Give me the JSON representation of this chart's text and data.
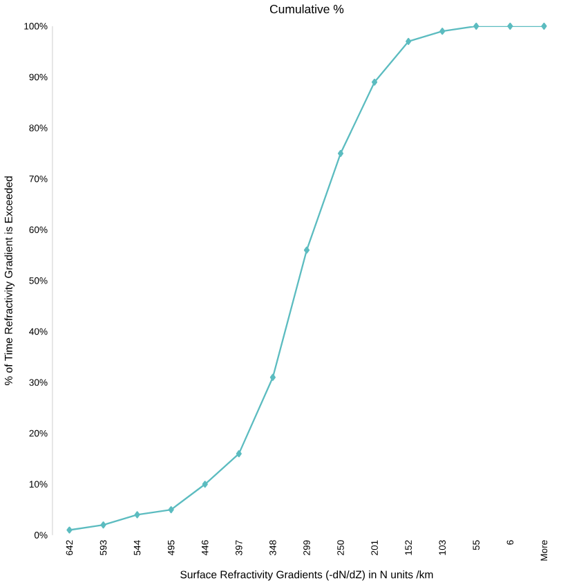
{
  "chart_data": {
    "type": "line",
    "title": "Cumulative %",
    "xlabel": "Surface Refractivity Gradients (-dN/dZ) in N units /km",
    "ylabel": "% of Time Refractivity Gradient is Exceeded",
    "categories": [
      "642",
      "593",
      "544",
      "495",
      "446",
      "397",
      "348",
      "299",
      "250",
      "201",
      "152",
      "103",
      "55",
      "6",
      "More"
    ],
    "series": [
      {
        "color": "#5cbcc0",
        "values": [
          1,
          2,
          4,
          5,
          10,
          16,
          31,
          56,
          75,
          89,
          97,
          99,
          100,
          100,
          100
        ]
      }
    ],
    "ylim": [
      0,
      100
    ],
    "yticks": [
      {
        "value": 0,
        "label": "0%"
      },
      {
        "value": 10,
        "label": "10%"
      },
      {
        "value": 20,
        "label": "20%"
      },
      {
        "value": 30,
        "label": "30%"
      },
      {
        "value": 40,
        "label": "40%"
      },
      {
        "value": 50,
        "label": "50%"
      },
      {
        "value": 60,
        "label": "60%"
      },
      {
        "value": 70,
        "label": "70%"
      },
      {
        "value": 80,
        "label": "80%"
      },
      {
        "value": 90,
        "label": "90%"
      },
      {
        "value": 100,
        "label": "100%"
      }
    ],
    "grid": false,
    "marker": "diamond",
    "line_style": "solid"
  }
}
